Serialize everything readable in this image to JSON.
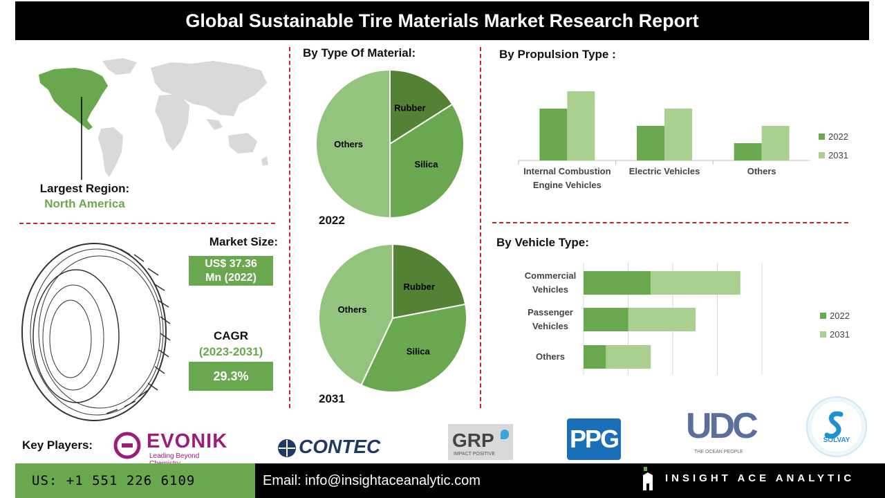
{
  "title": "Global Sustainable Tire Materials Market Research Report",
  "region": {
    "label": "Largest Region:",
    "value": "North America"
  },
  "market_size": {
    "label": "Market Size:",
    "line1": "US$ 37.36",
    "line2": "Mn (2022)"
  },
  "cagr": {
    "label": "CAGR",
    "period": "(2023-2031)",
    "value": "29.3%"
  },
  "colors": {
    "dark_green": "#548235",
    "mid_green": "#6aa84f",
    "light_green": "#93c47d",
    "pale_green": "#a9d08e",
    "accent_red": "#c0272d"
  },
  "material_section": {
    "title": "By Type Of Material:"
  },
  "propulsion_section": {
    "title": "By Propulsion Type :"
  },
  "vehicle_section": {
    "title": "By Vehicle Type:"
  },
  "key_players_label": "Key Players:",
  "logos": {
    "evonik": {
      "name": "EVONIK",
      "tagline": "Leading Beyond Chemistry"
    },
    "contec": {
      "name": "CONTEC"
    },
    "grp": {
      "name": "GRP",
      "tagline": "IMPACT POSITIVE"
    },
    "ppg": {
      "name": "PPG"
    },
    "udc": {
      "name": "UDC",
      "tagline": "THE OCEAN PEOPLE"
    },
    "solvay": {
      "name": "SOLVAY"
    }
  },
  "footer": {
    "phone": "US: +1 551 226 6109",
    "email": "Email: info@insightaceanalytic.com",
    "brand": "INSIGHT ACE ANALYTIC"
  },
  "chart_data": [
    {
      "type": "pie",
      "title": "2022",
      "categories": [
        "Rubber",
        "Silica",
        "Others"
      ],
      "values": [
        16,
        34,
        50
      ],
      "colors": [
        "#548235",
        "#6aa84f",
        "#93c47d"
      ]
    },
    {
      "type": "pie",
      "title": "2031",
      "categories": [
        "Rubber",
        "Silica",
        "Others"
      ],
      "values": [
        22,
        35,
        43
      ],
      "colors": [
        "#548235",
        "#6aa84f",
        "#93c47d"
      ]
    },
    {
      "type": "bar",
      "orientation": "vertical",
      "categories": [
        "Internal Combustion\nEngine Vehicles",
        "Electric Vehicles",
        "Others"
      ],
      "series": [
        {
          "name": "2022",
          "values": [
            3,
            2,
            1
          ],
          "color": "#6aa84f"
        },
        {
          "name": "2031",
          "values": [
            4,
            3,
            2
          ],
          "color": "#a9d08e"
        }
      ],
      "ylim": [
        0,
        4.4
      ],
      "legend": "right"
    },
    {
      "type": "bar",
      "orientation": "horizontal",
      "stacked": true,
      "categories": [
        "Commercial\nVehicles",
        "Passenger\nVehicles",
        "Others"
      ],
      "series": [
        {
          "name": "2022",
          "values": [
            3,
            2,
            1
          ],
          "color": "#6aa84f"
        },
        {
          "name": "2031",
          "values": [
            4,
            3,
            2
          ],
          "color": "#a9d08e"
        }
      ],
      "xlim": [
        0,
        10
      ],
      "grid": true,
      "legend": "right"
    }
  ]
}
